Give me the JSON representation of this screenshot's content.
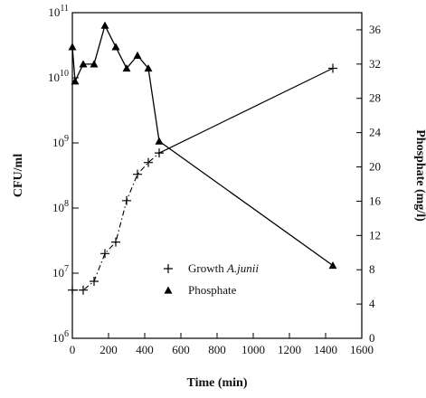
{
  "chart_data": {
    "type": "line",
    "xlabel": "Time (min)",
    "ylabel_left": "CFU/ml",
    "ylabel_right": "Phosphate (mg/l)",
    "xlim": [
      0,
      1600
    ],
    "x_ticks": [
      "0",
      "200",
      "400",
      "600",
      "800",
      "1000",
      "1200",
      "1400",
      "1600"
    ],
    "ylim_left_log10": [
      6,
      11
    ],
    "ylim_right": [
      0,
      38
    ],
    "y_right_ticks": [
      "0",
      "4",
      "8",
      "12",
      "16",
      "20",
      "24",
      "28",
      "32",
      "36"
    ],
    "series": [
      {
        "name": "Growth A.junii",
        "name_prefix": "Growth ",
        "name_species": "A.junii",
        "axis": "left",
        "marker": "plus",
        "x": [
          0,
          60,
          120,
          180,
          240,
          300,
          360,
          420,
          480,
          1440
        ],
        "y": [
          5500000,
          5500000,
          7500000,
          20000000,
          30000000,
          130000000,
          330000000,
          500000000,
          700000000,
          14000000000
        ]
      },
      {
        "name": "Phosphate",
        "axis": "right",
        "marker": "triangle",
        "x": [
          0,
          15,
          60,
          120,
          180,
          240,
          300,
          360,
          420,
          480,
          1440
        ],
        "y": [
          34,
          30,
          32,
          32,
          36.5,
          34,
          31.5,
          33,
          31.5,
          23,
          8.5
        ]
      }
    ],
    "legend_position": "lower-right"
  }
}
